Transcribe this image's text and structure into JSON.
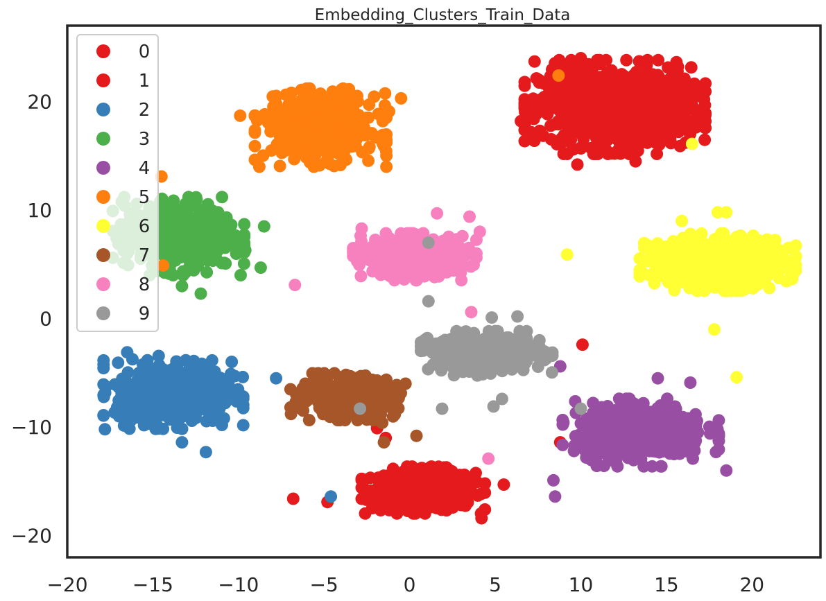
{
  "chart_data": {
    "type": "scatter",
    "title": "Embedding_Clusters_Train_Data",
    "xlabel": "",
    "ylabel": "",
    "xlim": [
      -20,
      24
    ],
    "ylim": [
      -22,
      27
    ],
    "xticks": [
      -20,
      -15,
      -10,
      -5,
      0,
      5,
      10,
      15,
      20
    ],
    "xtick_labels": [
      "−20",
      "−15",
      "−10",
      "−5",
      "0",
      "5",
      "10",
      "15",
      "20"
    ],
    "yticks": [
      -20,
      -10,
      0,
      10,
      20
    ],
    "ytick_labels": [
      "−20",
      "−10",
      "0",
      "10",
      "20"
    ],
    "grid": false,
    "legend_position": "upper-left",
    "series": [
      {
        "name": "0",
        "color": "#e41a1c",
        "clusters": [
          {
            "cx": 0.8,
            "cy": -15.8,
            "sx": 1.5,
            "sy": 0.9,
            "n": 520
          },
          {
            "cx": 12.0,
            "cy": 19.5,
            "sx": 2.2,
            "sy": 1.8,
            "n": 280
          }
        ],
        "outliers": [
          [
            -6.8,
            -16.6
          ],
          [
            -4.8,
            -16.9
          ],
          [
            4.2,
            -18.4
          ],
          [
            5.5,
            -15.3
          ],
          [
            -1.9,
            -10.1
          ],
          [
            10.1,
            -2.4
          ],
          [
            8.8,
            -11.4
          ]
        ]
      },
      {
        "name": "1",
        "color": "#e41a1c",
        "clusters": [
          {
            "cx": 12.0,
            "cy": 19.5,
            "sx": 2.2,
            "sy": 1.8,
            "n": 650
          }
        ],
        "outliers": [
          [
            7.3,
            23.7
          ],
          [
            6.5,
            18.2
          ],
          [
            16.2,
            17.9
          ],
          [
            10.0,
            24.0
          ],
          [
            9.8,
            14.2
          ],
          [
            13.2,
            14.5
          ],
          [
            15.8,
            15.9
          ],
          [
            -1.4,
            -11.0
          ]
        ]
      },
      {
        "name": "2",
        "color": "#377eb8",
        "clusters": [
          {
            "cx": -13.8,
            "cy": -6.8,
            "sx": 1.7,
            "sy": 1.4,
            "n": 500
          }
        ],
        "outliers": [
          [
            -7.8,
            -5.5
          ],
          [
            -4.6,
            -16.4
          ],
          [
            -11.9,
            -12.3
          ],
          [
            -13.3,
            -11.4
          ],
          [
            -17.8,
            -10.2
          ],
          [
            -16.5,
            -3.1
          ]
        ]
      },
      {
        "name": "3",
        "color": "#4daf4a",
        "clusters": [
          {
            "cx": -13.5,
            "cy": 7.6,
            "sx": 1.6,
            "sy": 1.5,
            "n": 480
          }
        ],
        "outliers": [
          [
            -8.5,
            8.5
          ],
          [
            -8.7,
            4.7
          ],
          [
            -12.2,
            2.3
          ],
          [
            -13.3,
            3.0
          ],
          [
            -9.6,
            6.3
          ]
        ]
      },
      {
        "name": "4",
        "color": "#984ea3",
        "clusters": [
          {
            "cx": 13.5,
            "cy": -10.5,
            "sx": 1.9,
            "sy": 1.3,
            "n": 420
          }
        ],
        "outliers": [
          [
            8.4,
            -14.9
          ],
          [
            8.5,
            -16.4
          ],
          [
            8.8,
            -4.4
          ],
          [
            9.6,
            -12.2
          ],
          [
            18.5,
            -14.0
          ],
          [
            16.4,
            -5.9
          ],
          [
            14.5,
            -5.5
          ]
        ]
      },
      {
        "name": "5",
        "color": "#ff7f0e",
        "clusters": [
          {
            "cx": -5.2,
            "cy": 17.6,
            "sx": 1.6,
            "sy": 1.5,
            "n": 480
          }
        ],
        "outliers": [
          [
            -9.9,
            18.7
          ],
          [
            -14.5,
            13.1
          ],
          [
            -14.4,
            4.9
          ],
          [
            8.7,
            22.4
          ],
          [
            -1.2,
            19.1
          ],
          [
            -0.5,
            20.3
          ],
          [
            -1.5,
            15.9
          ]
        ]
      },
      {
        "name": "6",
        "color": "#ffff33",
        "clusters": [
          {
            "cx": 18.0,
            "cy": 5.2,
            "sx": 1.9,
            "sy": 1.1,
            "n": 650
          }
        ],
        "outliers": [
          [
            9.2,
            5.9
          ],
          [
            16.5,
            16.1
          ],
          [
            19.1,
            -5.4
          ],
          [
            17.8,
            -1.0
          ],
          [
            18.0,
            9.8
          ],
          [
            18.5,
            9.8
          ],
          [
            15.9,
            9.0
          ]
        ]
      },
      {
        "name": "7",
        "color": "#a65628",
        "clusters": [
          {
            "cx": -3.6,
            "cy": -7.2,
            "sx": 1.4,
            "sy": 0.9,
            "n": 400
          }
        ],
        "outliers": [
          [
            0.4,
            -10.8
          ],
          [
            -1.6,
            -9.6
          ],
          [
            -1.5,
            -11.4
          ]
        ]
      },
      {
        "name": "8",
        "color": "#f781bf",
        "clusters": [
          {
            "cx": 0.3,
            "cy": 5.7,
            "sx": 1.5,
            "sy": 0.9,
            "n": 420
          }
        ],
        "outliers": [
          [
            -6.7,
            3.1
          ],
          [
            4.1,
            8.0
          ],
          [
            3.5,
            9.4
          ],
          [
            1.6,
            9.7
          ],
          [
            3.6,
            0.6
          ],
          [
            4.6,
            -12.9
          ],
          [
            -2.8,
            8.3
          ]
        ]
      },
      {
        "name": "9",
        "color": "#999999",
        "clusters": [
          {
            "cx": 4.5,
            "cy": -3.2,
            "sx": 1.6,
            "sy": 0.85,
            "n": 400
          }
        ],
        "outliers": [
          [
            1.1,
            7.0
          ],
          [
            1.1,
            1.6
          ],
          [
            -2.9,
            -8.3
          ],
          [
            1.9,
            -8.3
          ],
          [
            4.9,
            -8.1
          ],
          [
            5.4,
            -7.4
          ],
          [
            10.0,
            -8.3
          ],
          [
            4.8,
            0.1
          ],
          [
            6.3,
            0.2
          ]
        ]
      }
    ]
  }
}
